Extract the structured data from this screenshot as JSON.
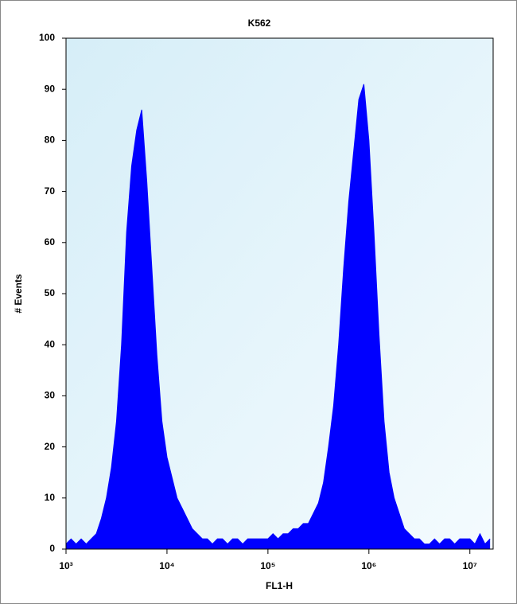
{
  "chart_data": {
    "type": "area",
    "title": "K562",
    "xlabel": "FL1-H",
    "ylabel": "# Events",
    "log_x": true,
    "color": "#0000ff",
    "x": [
      1000,
      1122,
      1259,
      1413,
      1585,
      1778,
      1995,
      2239,
      2512,
      2818,
      3162,
      3548,
      3981,
      4467,
      5012,
      5623,
      6310,
      7079,
      7943,
      8913,
      10000,
      11220,
      12590,
      14130,
      15850,
      17780,
      19950,
      22390,
      25120,
      28180,
      31620,
      35480,
      39810,
      44670,
      50120,
      56230,
      63100,
      70790,
      79430,
      89130,
      100000,
      112200,
      125900,
      141300,
      158500,
      177800,
      199500,
      223900,
      251200,
      281800,
      316200,
      354800,
      398100,
      446700,
      501200,
      562300,
      631000,
      707900,
      794300,
      891300,
      1000000,
      1122000,
      1259000,
      1413000,
      1585000,
      1778000,
      1995000,
      2239000,
      2512000,
      2818000,
      3162000,
      3548000,
      3981000,
      4467000,
      5012000,
      5623000,
      6310000,
      7079000,
      7943000,
      8913000,
      10000000,
      11220000,
      12590000,
      14130000,
      15850000
    ],
    "values": [
      1,
      2,
      1,
      2,
      1,
      2,
      3,
      6,
      10,
      16,
      25,
      40,
      62,
      75,
      82,
      86,
      72,
      55,
      38,
      25,
      18,
      14,
      10,
      8,
      6,
      4,
      3,
      2,
      2,
      1,
      2,
      2,
      1,
      2,
      2,
      1,
      2,
      2,
      2,
      2,
      2,
      3,
      2,
      3,
      3,
      4,
      4,
      5,
      5,
      7,
      9,
      13,
      20,
      28,
      40,
      55,
      68,
      78,
      88,
      91,
      80,
      62,
      42,
      25,
      15,
      10,
      7,
      4,
      3,
      2,
      2,
      1,
      1,
      2,
      1,
      2,
      2,
      1,
      2,
      2,
      2,
      1,
      3,
      1,
      2
    ],
    "xlim": [
      1000,
      17000000
    ],
    "xticks": [
      {
        "value": 1000,
        "label": "10³"
      },
      {
        "value": 10000,
        "label": "10⁴"
      },
      {
        "value": 100000,
        "label": "10⁵"
      },
      {
        "value": 1000000,
        "label": "10⁶"
      },
      {
        "value": 10000000,
        "label": "10⁷"
      }
    ],
    "ylim": [
      0,
      100
    ],
    "yticks": [
      0,
      10,
      20,
      30,
      40,
      50,
      60,
      70,
      80,
      90,
      100
    ]
  }
}
